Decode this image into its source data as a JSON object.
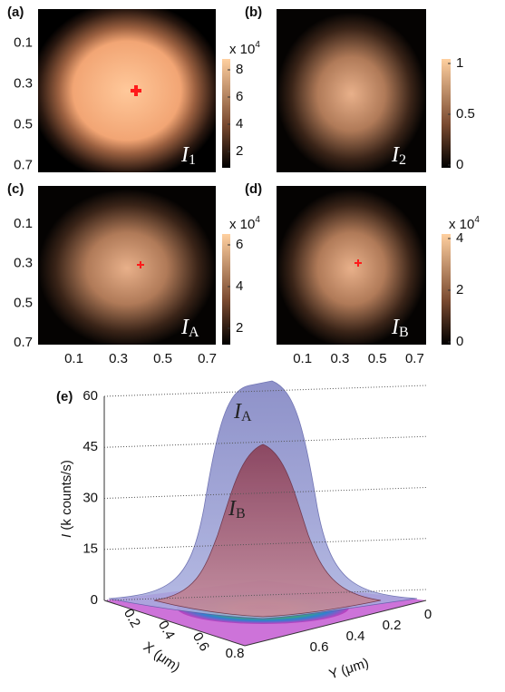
{
  "panels": [
    {
      "label": "(a)",
      "image_label": {
        "main": "I",
        "sub": "1"
      },
      "yticks": [
        0.1,
        0.3,
        0.5,
        0.7
      ],
      "xticks": [],
      "colorbar": {
        "scale": {
          "base": "x 10",
          "exp": "4"
        },
        "ticks": [
          8,
          6,
          4,
          2
        ]
      }
    },
    {
      "label": "(b)",
      "image_label": {
        "main": "I",
        "sub": "2"
      },
      "yticks": [],
      "xticks": [],
      "colorbar": {
        "ticks": [
          1,
          0.5,
          0
        ]
      }
    },
    {
      "label": "(c)",
      "image_label": {
        "main": "I",
        "sub": "A"
      },
      "yticks": [
        0.1,
        0.3,
        0.5,
        0.7
      ],
      "xticks": [
        0.1,
        0.3,
        0.5,
        0.7
      ],
      "colorbar": {
        "scale": {
          "base": "x 10",
          "exp": "4"
        },
        "ticks": [
          6,
          4,
          2
        ]
      }
    },
    {
      "label": "(d)",
      "image_label": {
        "main": "I",
        "sub": "B"
      },
      "yticks": [],
      "xticks": [
        0.1,
        0.3,
        0.5,
        0.7
      ],
      "colorbar": {
        "scale": {
          "base": "x 10",
          "exp": "4"
        },
        "ticks": [
          4,
          2,
          0
        ]
      }
    }
  ],
  "surface": {
    "label": "(e)",
    "zlabel": {
      "main": "I",
      "rest": " (k counts/s)"
    },
    "zticks": [
      60,
      45,
      30,
      15,
      0
    ],
    "xlabel": {
      "main": "X",
      "rest": " (μm)"
    },
    "xticks": [
      0.2,
      0.4,
      0.6,
      0.8
    ],
    "ylabel": {
      "main": "Y",
      "rest": " (μm)"
    },
    "yticks": [
      0,
      0.2,
      0.4,
      0.6
    ],
    "curve_labels": [
      {
        "main": "I",
        "sub": "A"
      },
      {
        "main": "I",
        "sub": "B"
      }
    ]
  }
}
